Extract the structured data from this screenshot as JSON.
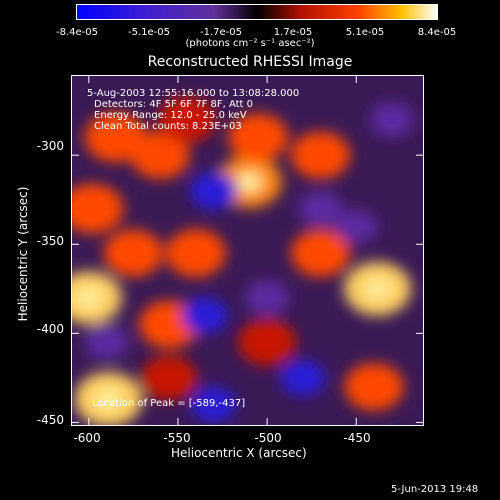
{
  "colorbar": {
    "ticks": [
      "-8.4e-05",
      "-5.1e-05",
      "-1.7e-05",
      "1.7e-05",
      "5.1e-05",
      "8.4e-05"
    ],
    "unit_label": "(photons cm⁻² s⁻¹ asec⁻²)"
  },
  "chart_data": {
    "type": "heatmap",
    "title": "Reconstructed RHESSI Image",
    "xlabel": "Heliocentric X (arcsec)",
    "ylabel": "Heliocentric Y (arcsec)",
    "xlim": [
      -610,
      -412
    ],
    "ylim": [
      -452,
      -255
    ],
    "xticks": [
      -600,
      -550,
      -500,
      -450
    ],
    "yticks": [
      -300,
      -350,
      -400,
      -450
    ],
    "color_range": [
      -8.4e-05,
      8.4e-05
    ],
    "colormap": "blue-purple-black-red-yellow-white",
    "peak_location": [
      -589,
      -437
    ],
    "annotations": [
      "5-Aug-2003 12:55:16.000 to 13:08:28.000",
      "Detectors: 4F 5F 6F 7F 8F, Att 0",
      "Energy Range: 12.0 - 25.0 keV",
      "Clean    Total counts: 8.23E+03"
    ],
    "peak_text": "Location of Peak = [-589,-437]",
    "blobs": [
      {
        "x": -589,
        "y": -437,
        "v": 1.0
      },
      {
        "x": -600,
        "y": -380,
        "v": 0.9
      },
      {
        "x": -598,
        "y": -330,
        "v": 0.7
      },
      {
        "x": -585,
        "y": -290,
        "v": 0.7
      },
      {
        "x": -560,
        "y": -300,
        "v": 0.55
      },
      {
        "x": -545,
        "y": -280,
        "v": 0.5
      },
      {
        "x": -510,
        "y": -315,
        "v": 0.85
      },
      {
        "x": -505,
        "y": -290,
        "v": 0.6
      },
      {
        "x": -540,
        "y": -355,
        "v": 0.6
      },
      {
        "x": -575,
        "y": -355,
        "v": 0.55
      },
      {
        "x": -470,
        "y": -300,
        "v": 0.55
      },
      {
        "x": -470,
        "y": -355,
        "v": 0.55
      },
      {
        "x": -438,
        "y": -375,
        "v": 0.95
      },
      {
        "x": -555,
        "y": -395,
        "v": 0.6
      },
      {
        "x": -500,
        "y": -405,
        "v": 0.5
      },
      {
        "x": -440,
        "y": -430,
        "v": 0.55
      },
      {
        "x": -555,
        "y": -425,
        "v": 0.4
      },
      {
        "x": -530,
        "y": -320,
        "v": -0.7
      },
      {
        "x": -470,
        "y": -330,
        "v": -0.5
      },
      {
        "x": -535,
        "y": -390,
        "v": -0.6
      },
      {
        "x": -590,
        "y": -405,
        "v": -0.5
      },
      {
        "x": -530,
        "y": -440,
        "v": -0.55
      },
      {
        "x": -480,
        "y": -425,
        "v": -0.55
      },
      {
        "x": -430,
        "y": -280,
        "v": -0.5
      },
      {
        "x": -500,
        "y": -380,
        "v": -0.5
      },
      {
        "x": -450,
        "y": -340,
        "v": -0.4
      }
    ]
  },
  "footer": {
    "date": "5-Jun-2013 19:48"
  }
}
